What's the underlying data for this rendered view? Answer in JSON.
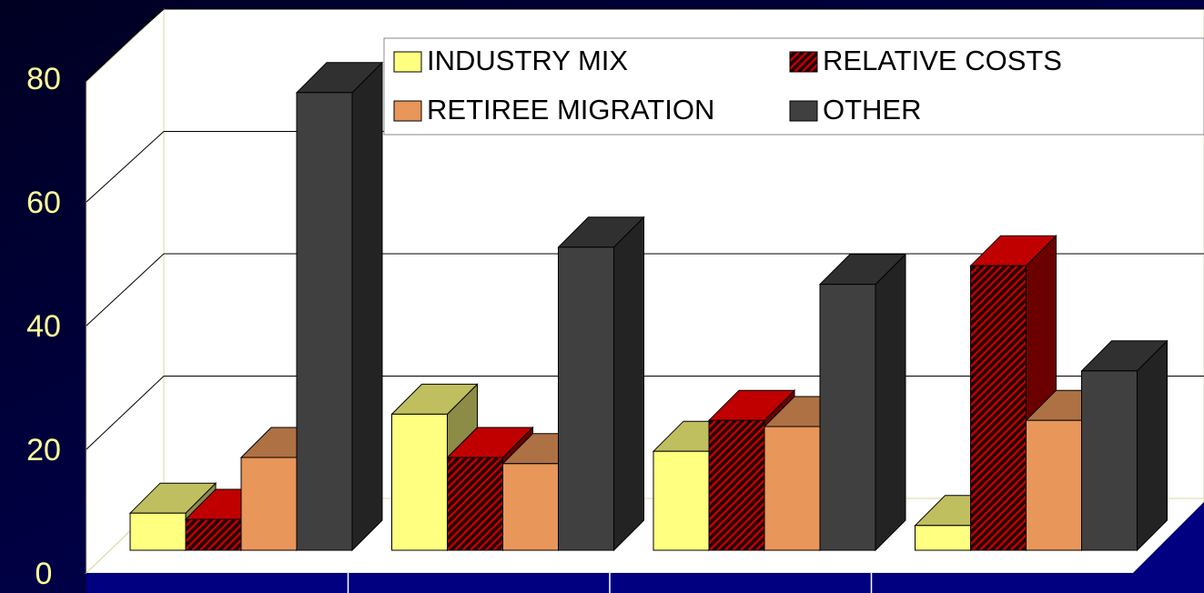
{
  "chart_data": {
    "type": "bar3d",
    "categories": [
      null,
      null,
      null,
      null
    ],
    "series": [
      {
        "name": "INDUSTRY MIX",
        "color": "#ffff80",
        "values": [
          6,
          22,
          16,
          4
        ]
      },
      {
        "name": "RELATIVE COSTS",
        "color": "#c00000",
        "hatch": true,
        "values": [
          5,
          15,
          21,
          46
        ]
      },
      {
        "name": "RETIREE MIGRATION",
        "color": "#e8965a",
        "values": [
          15,
          14,
          20,
          21
        ]
      },
      {
        "name": "OTHER",
        "color": "#404040",
        "values": [
          74,
          49,
          43,
          29
        ]
      }
    ],
    "ylim": [
      0,
      80
    ],
    "yticks": [
      0,
      20,
      40,
      60,
      80
    ],
    "grid": true
  }
}
